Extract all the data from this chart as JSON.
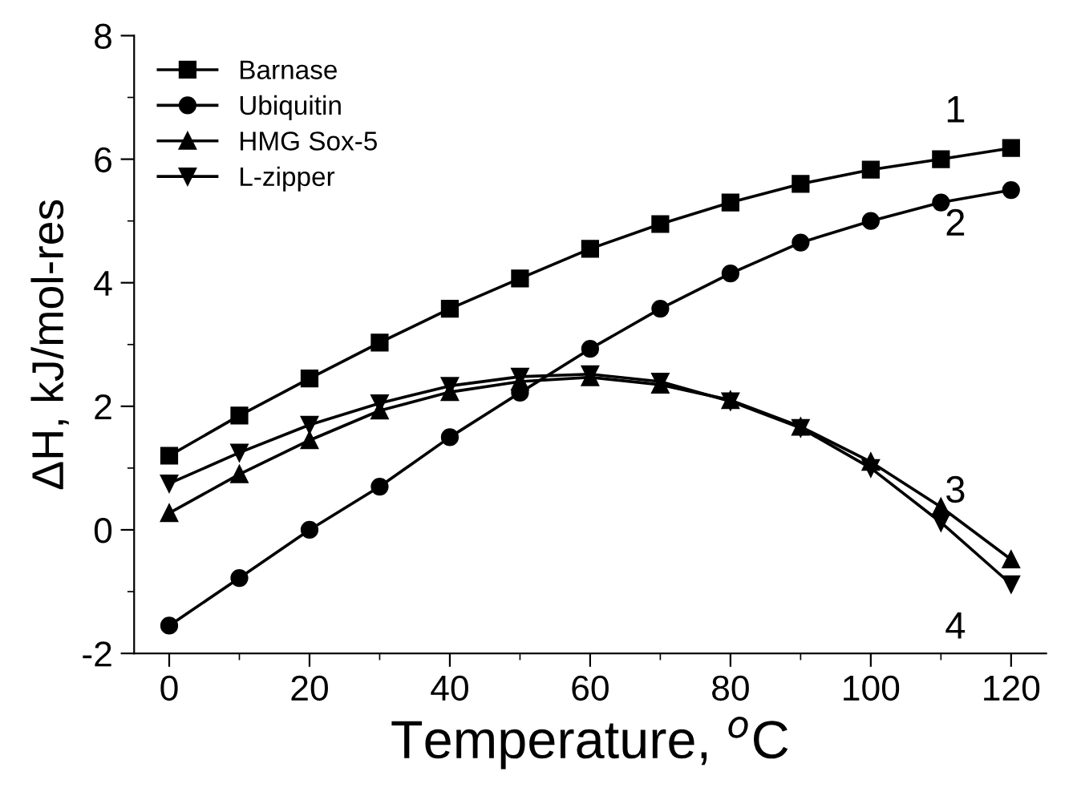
{
  "chart_data": {
    "type": "line",
    "xlabel": "Temperature, $^{o}$C",
    "ylabel": "ΔH, kJ/mol-res",
    "x": [
      0,
      10,
      20,
      30,
      40,
      50,
      60,
      70,
      80,
      90,
      100,
      110,
      120
    ],
    "series": [
      {
        "name": "Barnase",
        "color": "#000000",
        "marker": "square",
        "values": [
          1.2,
          1.85,
          2.45,
          3.03,
          3.58,
          4.07,
          4.55,
          4.95,
          5.3,
          5.6,
          5.83,
          6.0,
          6.18
        ]
      },
      {
        "name": "Ubiquitin",
        "color": "#000000",
        "marker": "circle",
        "values": [
          -1.55,
          -0.78,
          0.0,
          0.7,
          1.5,
          2.22,
          2.93,
          3.58,
          4.15,
          4.65,
          5.0,
          5.3,
          5.5
        ]
      },
      {
        "name": "HMG Sox-5",
        "color": "#000000",
        "marker": "triangle",
        "values": [
          0.27,
          0.9,
          1.45,
          1.93,
          2.23,
          2.4,
          2.47,
          2.35,
          2.1,
          1.67,
          1.1,
          0.37,
          -0.48
        ]
      },
      {
        "name": "L-zipper",
        "color": "#000000",
        "marker": "triangle_down",
        "values": [
          0.75,
          1.25,
          1.7,
          2.05,
          2.33,
          2.48,
          2.52,
          2.4,
          2.08,
          1.65,
          1.0,
          0.12,
          -0.88
        ]
      }
    ],
    "annotations": [
      "1",
      "2",
      "3",
      "4"
    ],
    "xlim": [
      -5,
      125
    ],
    "ylim": [
      -2,
      8
    ],
    "xticks": [
      0,
      20,
      40,
      60,
      80,
      100,
      120
    ],
    "yticks": [
      -2,
      0,
      2,
      4,
      6,
      8
    ],
    "grid": false,
    "legend": "top left",
    "line_style": "solid"
  }
}
